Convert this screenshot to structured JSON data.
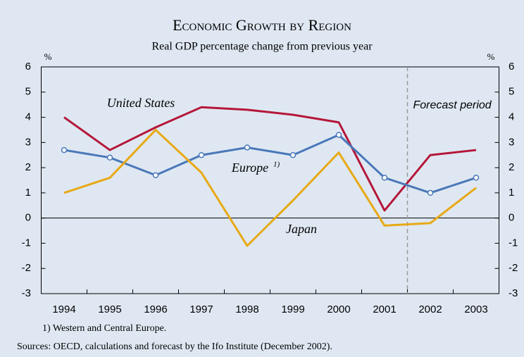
{
  "chart_data": {
    "type": "line",
    "title": "Economic Growth by Region",
    "subtitle": "Real GDP percentage change from previous year",
    "y_unit": "%",
    "categories": [
      "1994",
      "1995",
      "1996",
      "1997",
      "1998",
      "1999",
      "2000",
      "2001",
      "2002",
      "2003"
    ],
    "series": [
      {
        "name": "United States",
        "color": "#b5173a",
        "values": [
          4.0,
          2.7,
          3.6,
          4.4,
          4.3,
          4.1,
          3.8,
          0.3,
          2.5,
          2.7
        ]
      },
      {
        "name": "Europe",
        "color": "#4a78b9",
        "markers": true,
        "values": [
          2.7,
          2.4,
          1.7,
          2.5,
          2.8,
          2.5,
          3.3,
          1.6,
          1.0,
          1.6
        ]
      },
      {
        "name": "Japan",
        "color": "#e8a917",
        "values": [
          1.0,
          1.6,
          3.5,
          1.8,
          -1.1,
          0.7,
          2.6,
          -0.3,
          -0.2,
          1.2
        ]
      }
    ],
    "europe_note_marker": "1)",
    "forecast_label": "Forecast period",
    "forecast_from": "2002",
    "ylim": [
      -3,
      6
    ],
    "yticks": [
      -3,
      -2,
      -1,
      0,
      1,
      2,
      3,
      4,
      5,
      6
    ],
    "y2lim": [
      -3,
      6
    ],
    "y2ticks": [
      -3,
      -2,
      -1,
      0,
      1,
      2,
      3,
      4,
      5,
      6
    ],
    "grid": false,
    "footnote": "1) Western and Central Europe.",
    "source": "Sources: OECD, calculations and forecast by the Ifo Institute (December 2002)."
  }
}
